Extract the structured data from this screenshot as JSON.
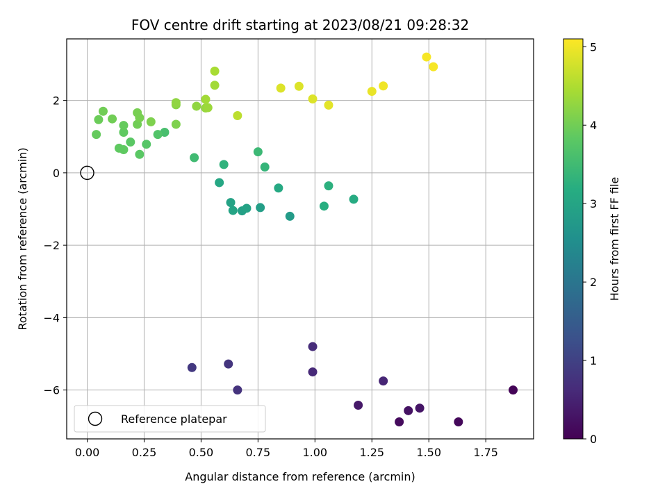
{
  "chart_data": {
    "type": "scatter",
    "title": "FOV centre drift starting at 2023/08/21 09:28:32",
    "xlabel": "Angular distance from reference (arcmin)",
    "ylabel": "Rotation from reference (arcmin)",
    "xlim": [
      -0.09,
      1.96
    ],
    "ylim": [
      -7.35,
      3.7
    ],
    "xticks": [
      0.0,
      0.25,
      0.5,
      0.75,
      1.0,
      1.25,
      1.5,
      1.75
    ],
    "xtick_labels": [
      "0.00",
      "0.25",
      "0.50",
      "0.75",
      "1.00",
      "1.25",
      "1.50",
      "1.75"
    ],
    "yticks": [
      -6,
      -4,
      -2,
      0,
      2
    ],
    "ytick_labels": [
      "−6",
      "−4",
      "−2",
      "0",
      "2"
    ],
    "grid": true,
    "colormap": "viridis",
    "colorbar": {
      "label": "Hours from first FF file",
      "range": [
        0,
        5.1
      ],
      "ticks": [
        0,
        1,
        2,
        3,
        4,
        5
      ],
      "tick_labels": [
        "0",
        "1",
        "2",
        "3",
        "4",
        "5"
      ]
    },
    "legend": {
      "position": "lower-left",
      "entries": [
        {
          "label": "Reference platepar",
          "marker": "open-circle"
        }
      ]
    },
    "reference_point": {
      "x": 0.0,
      "y": 0.0
    },
    "series": [
      {
        "points": [
          {
            "x": 1.87,
            "y": -6.0,
            "c": 0.05
          },
          {
            "x": 1.63,
            "y": -6.88,
            "c": 0.1
          },
          {
            "x": 1.37,
            "y": -6.88,
            "c": 0.15
          },
          {
            "x": 1.41,
            "y": -6.57,
            "c": 0.25
          },
          {
            "x": 1.46,
            "y": -6.5,
            "c": 0.3
          },
          {
            "x": 1.19,
            "y": -6.42,
            "c": 0.35
          },
          {
            "x": 1.3,
            "y": -5.75,
            "c": 0.55
          },
          {
            "x": 0.99,
            "y": -5.5,
            "c": 0.6
          },
          {
            "x": 0.99,
            "y": -4.8,
            "c": 0.65
          },
          {
            "x": 0.66,
            "y": -6.0,
            "c": 0.75
          },
          {
            "x": 0.62,
            "y": -5.28,
            "c": 0.8
          },
          {
            "x": 0.46,
            "y": -5.38,
            "c": 0.85
          },
          {
            "x": 0.89,
            "y": -1.2,
            "c": 2.8
          },
          {
            "x": 0.76,
            "y": -0.96,
            "c": 2.85
          },
          {
            "x": 0.68,
            "y": -1.05,
            "c": 2.9
          },
          {
            "x": 0.7,
            "y": -0.98,
            "c": 2.95
          },
          {
            "x": 0.64,
            "y": -1.04,
            "c": 3.0
          },
          {
            "x": 0.63,
            "y": -0.82,
            "c": 2.95
          },
          {
            "x": 0.58,
            "y": -0.27,
            "c": 3.05
          },
          {
            "x": 0.84,
            "y": -0.42,
            "c": 3.1
          },
          {
            "x": 1.17,
            "y": -0.73,
            "c": 3.15
          },
          {
            "x": 1.04,
            "y": -0.92,
            "c": 3.2
          },
          {
            "x": 1.06,
            "y": -0.36,
            "c": 3.25
          },
          {
            "x": 0.6,
            "y": 0.23,
            "c": 3.3
          },
          {
            "x": 0.78,
            "y": 0.16,
            "c": 3.35
          },
          {
            "x": 0.75,
            "y": 0.58,
            "c": 3.45
          },
          {
            "x": 0.47,
            "y": 0.42,
            "c": 3.5
          },
          {
            "x": 0.34,
            "y": 1.12,
            "c": 3.6
          },
          {
            "x": 0.31,
            "y": 1.06,
            "c": 3.7
          },
          {
            "x": 0.26,
            "y": 0.79,
            "c": 3.75
          },
          {
            "x": 0.23,
            "y": 0.51,
            "c": 3.8
          },
          {
            "x": 0.19,
            "y": 0.85,
            "c": 3.8
          },
          {
            "x": 0.16,
            "y": 0.64,
            "c": 3.85
          },
          {
            "x": 0.14,
            "y": 0.68,
            "c": 3.85
          },
          {
            "x": 0.16,
            "y": 1.12,
            "c": 3.85
          },
          {
            "x": 0.16,
            "y": 1.31,
            "c": 3.9
          },
          {
            "x": 0.04,
            "y": 1.06,
            "c": 3.9
          },
          {
            "x": 0.05,
            "y": 1.47,
            "c": 3.95
          },
          {
            "x": 0.07,
            "y": 1.7,
            "c": 4.0
          },
          {
            "x": 0.11,
            "y": 1.49,
            "c": 4.0
          },
          {
            "x": 0.22,
            "y": 1.34,
            "c": 4.0
          },
          {
            "x": 0.23,
            "y": 1.52,
            "c": 4.05
          },
          {
            "x": 0.22,
            "y": 1.66,
            "c": 4.05
          },
          {
            "x": 0.28,
            "y": 1.41,
            "c": 4.1
          },
          {
            "x": 0.39,
            "y": 1.34,
            "c": 4.1
          },
          {
            "x": 0.39,
            "y": 1.88,
            "c": 4.2
          },
          {
            "x": 0.39,
            "y": 1.94,
            "c": 4.25
          },
          {
            "x": 0.48,
            "y": 1.84,
            "c": 4.25
          },
          {
            "x": 0.52,
            "y": 1.79,
            "c": 4.3
          },
          {
            "x": 0.53,
            "y": 1.8,
            "c": 4.35
          },
          {
            "x": 0.52,
            "y": 2.03,
            "c": 4.4
          },
          {
            "x": 0.56,
            "y": 2.42,
            "c": 4.4
          },
          {
            "x": 0.56,
            "y": 2.81,
            "c": 4.45
          },
          {
            "x": 0.66,
            "y": 1.58,
            "c": 4.6
          },
          {
            "x": 0.85,
            "y": 2.34,
            "c": 4.85
          },
          {
            "x": 0.93,
            "y": 2.39,
            "c": 4.85
          },
          {
            "x": 0.99,
            "y": 2.04,
            "c": 4.85
          },
          {
            "x": 1.06,
            "y": 1.87,
            "c": 4.9
          },
          {
            "x": 1.25,
            "y": 2.25,
            "c": 4.95
          },
          {
            "x": 1.3,
            "y": 2.4,
            "c": 5.0
          },
          {
            "x": 1.49,
            "y": 3.2,
            "c": 5.05
          },
          {
            "x": 1.52,
            "y": 2.93,
            "c": 5.05
          }
        ]
      }
    ]
  }
}
